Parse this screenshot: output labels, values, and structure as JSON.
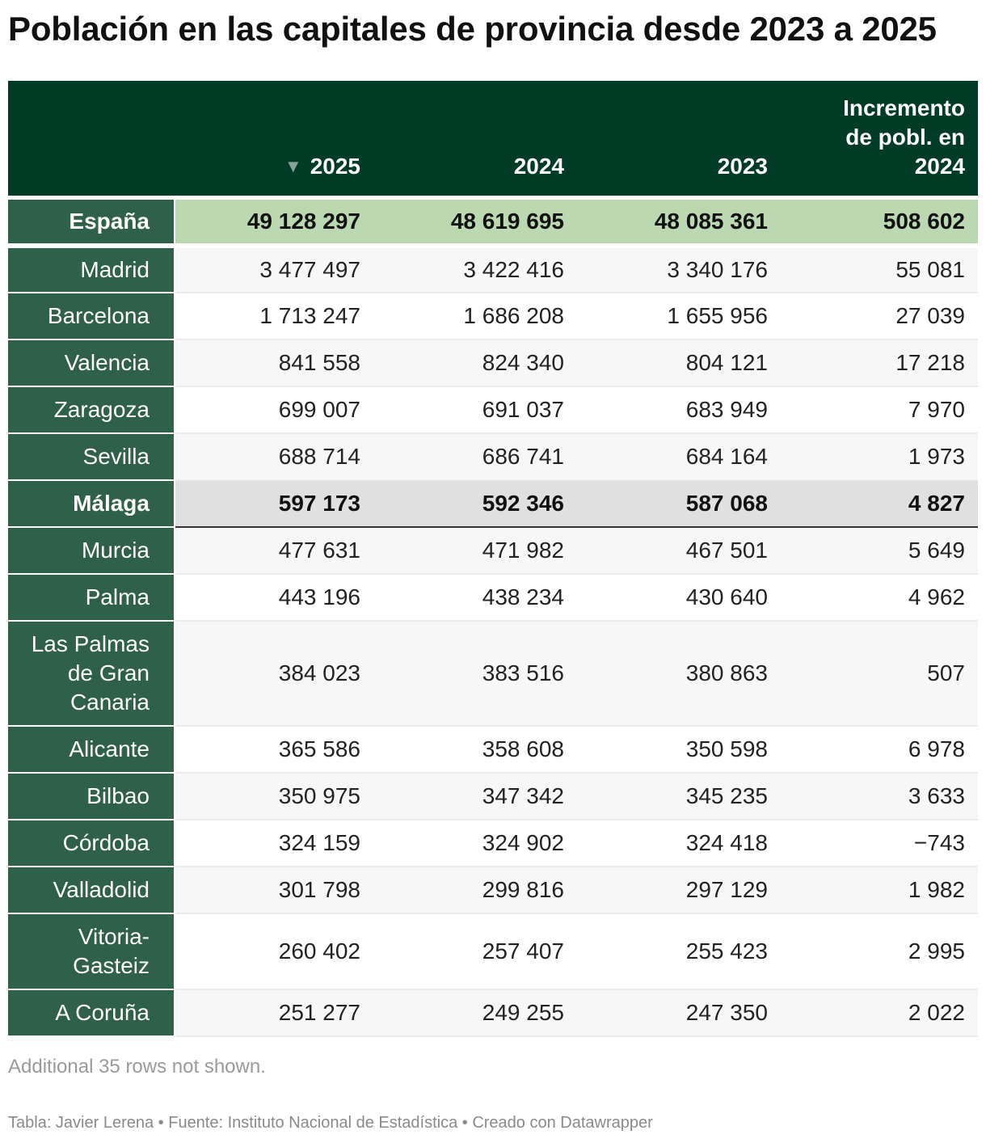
{
  "title": "Población en las capitales de provincia desde 2023 a 2025",
  "header": {
    "col0": "",
    "col1": "2025",
    "col2": "2024",
    "col3": "2023",
    "col4_line1": "Incremento",
    "col4_line2": "de pobl. en",
    "col4_line3": "2024",
    "sort_indicator": "▼"
  },
  "rows": [
    {
      "name": "España",
      "v2025": "49 128 297",
      "v2024": "48 619 695",
      "v2023": "48 085 361",
      "inc": "508 602"
    },
    {
      "name": "Madrid",
      "v2025": "3 477 497",
      "v2024": "3 422 416",
      "v2023": "3 340 176",
      "inc": "55 081"
    },
    {
      "name": "Barcelona",
      "v2025": "1 713 247",
      "v2024": "1 686 208",
      "v2023": "1 655 956",
      "inc": "27 039"
    },
    {
      "name": "Valencia",
      "v2025": "841 558",
      "v2024": "824 340",
      "v2023": "804 121",
      "inc": "17 218"
    },
    {
      "name": "Zaragoza",
      "v2025": "699 007",
      "v2024": "691 037",
      "v2023": "683 949",
      "inc": "7 970"
    },
    {
      "name": "Sevilla",
      "v2025": "688 714",
      "v2024": "686 741",
      "v2023": "684 164",
      "inc": "1 973"
    },
    {
      "name": "Málaga",
      "v2025": "597 173",
      "v2024": "592 346",
      "v2023": "587 068",
      "inc": "4 827"
    },
    {
      "name": "Murcia",
      "v2025": "477 631",
      "v2024": "471 982",
      "v2023": "467 501",
      "inc": "5 649"
    },
    {
      "name": "Palma",
      "v2025": "443 196",
      "v2024": "438 234",
      "v2023": "430 640",
      "inc": "4 962"
    },
    {
      "name_l1": "Las Palmas",
      "name_l2": "de Gran",
      "name_l3": "Canaria",
      "v2025": "384 023",
      "v2024": "383 516",
      "v2023": "380 863",
      "inc": "507"
    },
    {
      "name": "Alicante",
      "v2025": "365 586",
      "v2024": "358 608",
      "v2023": "350 598",
      "inc": "6 978"
    },
    {
      "name": "Bilbao",
      "v2025": "350 975",
      "v2024": "347 342",
      "v2023": "345 235",
      "inc": "3 633"
    },
    {
      "name": "Córdoba",
      "v2025": "324 159",
      "v2024": "324 902",
      "v2023": "324 418",
      "inc": "−743"
    },
    {
      "name": "Valladolid",
      "v2025": "301 798",
      "v2024": "299 816",
      "v2023": "297 129",
      "inc": "1 982"
    },
    {
      "name_l1": "Vitoria-",
      "name_l2": "Gasteiz",
      "v2025": "260 402",
      "v2024": "257 407",
      "v2023": "255 423",
      "inc": "2 995"
    },
    {
      "name": "A Coruña",
      "v2025": "251 277",
      "v2024": "249 255",
      "v2023": "247 350",
      "inc": "2 022"
    }
  ],
  "note": "Additional 35 rows not shown.",
  "credits": "Tabla: Javier Lerena • Fuente: Instituto Nacional de Estadística • Creado con Datawrapper",
  "colors": {
    "header_bg": "#003b26",
    "name_col_bg": "#2e604a",
    "highlight_spain": "#bad9b0",
    "highlight_malaga": "#e0e0e0"
  },
  "chart_data": {
    "type": "table",
    "title": "Población en las capitales de provincia desde 2023 a 2025",
    "columns": [
      "",
      "2025",
      "2024",
      "2023",
      "Incremento de pobl. en 2024"
    ],
    "sorted_by": "2025",
    "sort_order": "descending",
    "rows": [
      [
        "España",
        49128297,
        48619695,
        48085361,
        508602
      ],
      [
        "Madrid",
        3477497,
        3422416,
        3340176,
        55081
      ],
      [
        "Barcelona",
        1713247,
        1686208,
        1655956,
        27039
      ],
      [
        "Valencia",
        841558,
        824340,
        804121,
        17218
      ],
      [
        "Zaragoza",
        699007,
        691037,
        683949,
        7970
      ],
      [
        "Sevilla",
        688714,
        686741,
        684164,
        1973
      ],
      [
        "Málaga",
        597173,
        592346,
        587068,
        4827
      ],
      [
        "Murcia",
        477631,
        471982,
        467501,
        5649
      ],
      [
        "Palma",
        443196,
        438234,
        430640,
        4962
      ],
      [
        "Las Palmas de Gran Canaria",
        384023,
        383516,
        380863,
        507
      ],
      [
        "Alicante",
        365586,
        358608,
        350598,
        6978
      ],
      [
        "Bilbao",
        350975,
        347342,
        345235,
        3633
      ],
      [
        "Córdoba",
        324159,
        324902,
        324418,
        -743
      ],
      [
        "Valladolid",
        301798,
        299816,
        297129,
        1982
      ],
      [
        "Vitoria-Gasteiz",
        260402,
        257407,
        255423,
        2995
      ],
      [
        "A Coruña",
        251277,
        249255,
        247350,
        2022
      ]
    ]
  }
}
